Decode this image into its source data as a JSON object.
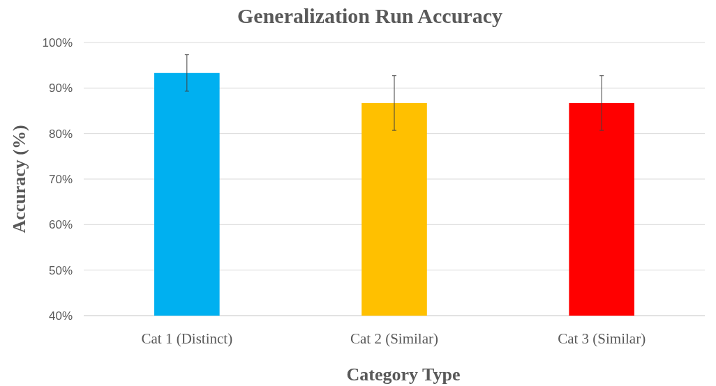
{
  "chart_data": {
    "type": "bar",
    "title": "Generalization Run Accuracy",
    "xlabel": "Category Type",
    "ylabel": "Accuracy (%)",
    "categories": [
      "Cat 1 (Distinct)",
      "Cat 2 (Similar)",
      "Cat 3 (Similar)"
    ],
    "values": [
      93.3,
      86.7,
      86.7
    ],
    "colors": [
      "#00b0f0",
      "#ffc000",
      "#ff0000"
    ],
    "errors": [
      4,
      6,
      6
    ],
    "ylim": [
      40,
      100
    ],
    "yticks": [
      {
        "value": 40,
        "label": "40%"
      },
      {
        "value": 50,
        "label": "50%"
      },
      {
        "value": 60,
        "label": "60%"
      },
      {
        "value": 70,
        "label": "70%"
      },
      {
        "value": 80,
        "label": "80%"
      },
      {
        "value": 90,
        "label": "90%"
      },
      {
        "value": 100,
        "label": "100%"
      }
    ],
    "grid": "y"
  }
}
